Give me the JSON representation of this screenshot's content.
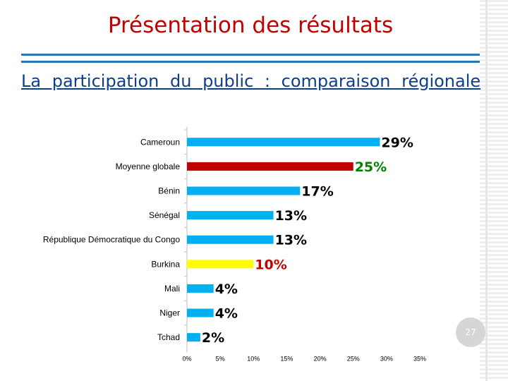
{
  "slide": {
    "title": "Présentation des résultats",
    "subtitle": "La participation du public : comparaison régionale",
    "page_number": "27"
  },
  "chart_data": {
    "type": "bar",
    "orientation": "horizontal",
    "categories": [
      "Cameroun",
      "Moyenne globale",
      "Bénin",
      "Sénégal",
      "République Démocratique du Congo",
      "Burkina",
      "Mali",
      "Niger",
      "Tchad"
    ],
    "values": [
      29,
      25,
      17,
      13,
      13,
      10,
      4,
      4,
      2
    ],
    "value_labels": [
      "29%",
      "25%",
      "17%",
      "13%",
      "13%",
      "10%",
      "4%",
      "4%",
      "2%"
    ],
    "bar_colors": [
      "#00b0f0",
      "#c00000",
      "#00b0f0",
      "#00b0f0",
      "#00b0f0",
      "#ffff00",
      "#00b0f0",
      "#00b0f0",
      "#00b0f0"
    ],
    "label_colors": [
      "#000000",
      "#008000",
      "#000000",
      "#000000",
      "#000000",
      "#c00000",
      "#000000",
      "#000000",
      "#000000"
    ],
    "xlim": [
      0,
      35
    ],
    "x_ticks": [
      0,
      5,
      10,
      15,
      20,
      25,
      30,
      35
    ],
    "x_tick_labels": [
      "0%",
      "5%",
      "10%",
      "15%",
      "20%",
      "25%",
      "30%",
      "35%"
    ],
    "grid": false,
    "legend": "none"
  }
}
